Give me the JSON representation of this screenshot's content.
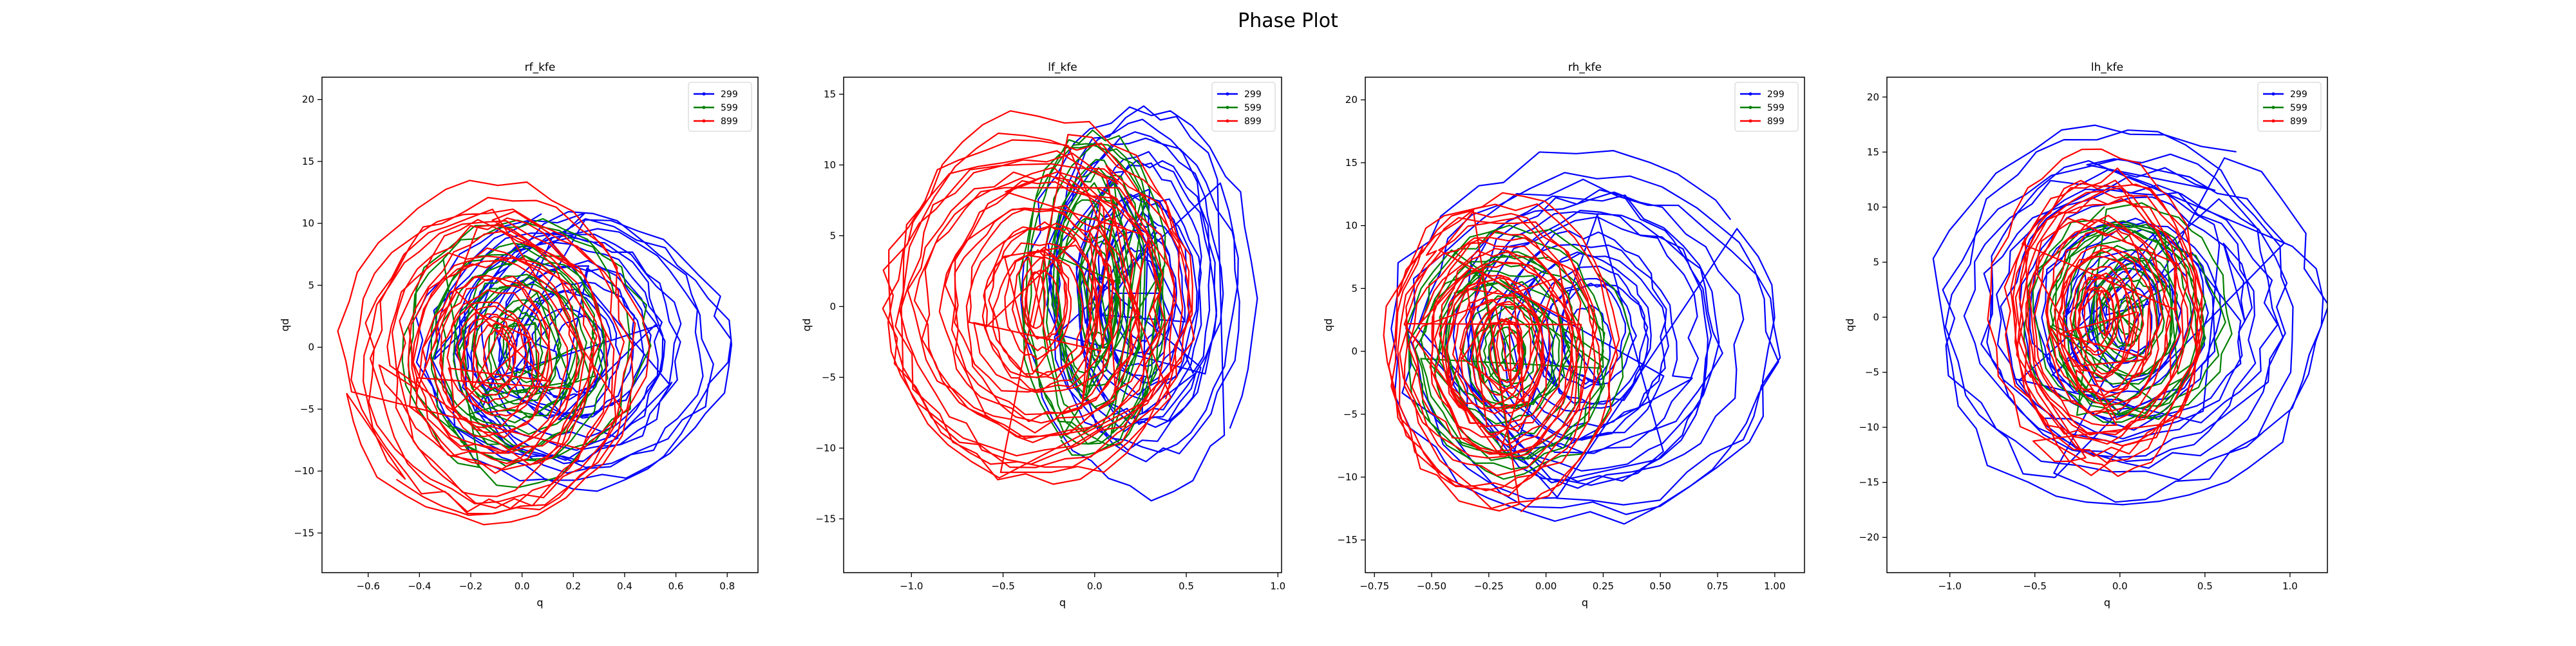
{
  "figure_title": "Phase Plot",
  "chart_data": [
    {
      "type": "line",
      "title": "rf_kfe",
      "xlabel": "q",
      "ylabel": "qd",
      "xlim": [
        -0.78,
        0.92
      ],
      "ylim": [
        -18.2,
        21.8
      ],
      "xticks": [
        -0.6,
        -0.4,
        -0.2,
        0.0,
        0.2,
        0.4,
        0.6,
        0.8
      ],
      "xtick_labels": [
        "−0.6",
        "−0.4",
        "−0.2",
        "0.0",
        "0.2",
        "0.4",
        "0.6",
        "0.8"
      ],
      "yticks": [
        -15,
        -10,
        -5,
        0,
        5,
        10,
        15,
        20
      ],
      "ytick_labels": [
        "−15",
        "−10",
        "−5",
        "0",
        "5",
        "10",
        "15",
        "20"
      ],
      "legend_position": "upper-right",
      "grid": false,
      "series": [
        {
          "name": "299",
          "color": "#0000ff",
          "cx": 0.2,
          "cy": 0,
          "ax_min": 0.1,
          "ax_max": 0.65,
          "ay_min": 3,
          "ay_max": 12.5,
          "loops": 16
        },
        {
          "name": "599",
          "color": "#008000",
          "cx": 0.0,
          "cy": 0,
          "ax_min": 0.05,
          "ax_max": 0.45,
          "ay_min": 2,
          "ay_max": 11,
          "loops": 14
        },
        {
          "name": "899",
          "color": "#ff0000",
          "cx": -0.1,
          "cy": -1,
          "ax_min": 0.05,
          "ax_max": 0.6,
          "ay_min": 2,
          "ay_max": 14.5,
          "loops": 22
        }
      ]
    },
    {
      "type": "line",
      "title": "lf_kfe",
      "xlabel": "q",
      "ylabel": "qd",
      "xlim": [
        -1.37,
        1.02
      ],
      "ylim": [
        -18.8,
        16.2
      ],
      "xticks": [
        -1.0,
        -0.5,
        0.0,
        0.5,
        1.0
      ],
      "xtick_labels": [
        "−1.0",
        "−0.5",
        "0.0",
        "0.5",
        "1.0"
      ],
      "yticks": [
        -15,
        -10,
        -5,
        0,
        5,
        10,
        15
      ],
      "ytick_labels": [
        "−15",
        "−10",
        "−5",
        "0",
        "5",
        "10",
        "15"
      ],
      "legend_position": "upper-right",
      "grid": false,
      "series": [
        {
          "name": "299",
          "color": "#0000ff",
          "cx": 0.25,
          "cy": 1,
          "ax_min": 0.1,
          "ax_max": 0.6,
          "ay_min": 3,
          "ay_max": 13.5,
          "loops": 16
        },
        {
          "name": "599",
          "color": "#008000",
          "cx": 0.0,
          "cy": 1,
          "ax_min": 0.05,
          "ax_max": 0.4,
          "ay_min": 3,
          "ay_max": 12.5,
          "loops": 14
        },
        {
          "name": "899",
          "color": "#ff0000",
          "cx": -0.3,
          "cy": 0,
          "ax_min": 0.05,
          "ax_max": 0.95,
          "ay_min": 2,
          "ay_max": 13.5,
          "loops": 24
        }
      ]
    },
    {
      "type": "line",
      "title": "rh_kfe",
      "xlabel": "q",
      "ylabel": "qd",
      "xlim": [
        -0.79,
        1.13
      ],
      "ylim": [
        -17.6,
        21.8
      ],
      "xticks": [
        -0.75,
        -0.5,
        -0.25,
        0.0,
        0.25,
        0.5,
        0.75,
        1.0
      ],
      "xtick_labels": [
        "−0.75",
        "−0.50",
        "−0.25",
        "0.00",
        "0.25",
        "0.50",
        "0.75",
        "1.00"
      ],
      "yticks": [
        -15,
        -10,
        -5,
        0,
        5,
        10,
        15,
        20
      ],
      "ytick_labels": [
        "−15",
        "−10",
        "−5",
        "0",
        "5",
        "10",
        "15",
        "20"
      ],
      "legend_position": "upper-right",
      "grid": false,
      "series": [
        {
          "name": "299",
          "color": "#0000ff",
          "cx": 0.2,
          "cy": 1,
          "ax_min": 0.1,
          "ax_max": 0.85,
          "ay_min": 3,
          "ay_max": 15.5,
          "loops": 18
        },
        {
          "name": "599",
          "color": "#008000",
          "cx": -0.15,
          "cy": 0,
          "ax_min": 0.05,
          "ax_max": 0.5,
          "ay_min": 1.5,
          "ay_max": 10.5,
          "loops": 14
        },
        {
          "name": "899",
          "color": "#ff0000",
          "cx": -0.2,
          "cy": 0,
          "ax_min": 0.05,
          "ax_max": 0.55,
          "ay_min": 2,
          "ay_max": 13.5,
          "loops": 22
        }
      ]
    },
    {
      "type": "line",
      "title": "lh_kfe",
      "xlabel": "q",
      "ylabel": "qd",
      "xlim": [
        -1.37,
        1.22
      ],
      "ylim": [
        -23.2,
        21.8
      ],
      "xticks": [
        -1.0,
        -0.5,
        0.0,
        0.5,
        1.0
      ],
      "xtick_labels": [
        "−1.0",
        "−0.5",
        "0.0",
        "0.5",
        "1.0"
      ],
      "yticks": [
        -20,
        -15,
        -10,
        -5,
        0,
        5,
        10,
        15,
        20
      ],
      "ytick_labels": [
        "−20",
        "−15",
        "−10",
        "−5",
        "0",
        "5",
        "10",
        "15",
        "20"
      ],
      "legend_position": "upper-right",
      "grid": false,
      "series": [
        {
          "name": "299",
          "color": "#0000ff",
          "cx": 0.05,
          "cy": 0,
          "ax_min": 0.1,
          "ax_max": 1.2,
          "ay_min": 3,
          "ay_max": 17.5,
          "loops": 18
        },
        {
          "name": "599",
          "color": "#008000",
          "cx": 0.05,
          "cy": 0,
          "ax_min": 0.05,
          "ax_max": 0.6,
          "ay_min": 1.5,
          "ay_max": 11,
          "loops": 14
        },
        {
          "name": "899",
          "color": "#ff0000",
          "cx": -0.1,
          "cy": 0,
          "ax_min": 0.05,
          "ax_max": 0.65,
          "ay_min": 2,
          "ay_max": 14.5,
          "loops": 22
        }
      ]
    }
  ]
}
